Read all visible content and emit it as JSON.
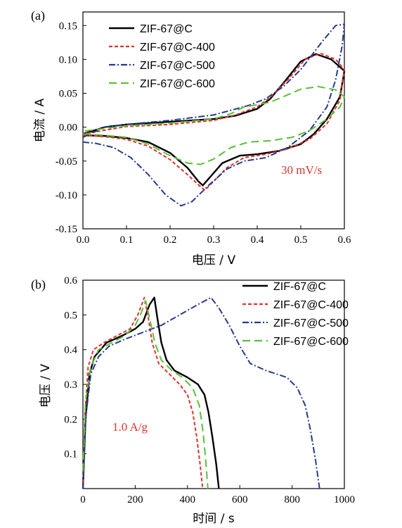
{
  "chart_data": [
    {
      "type": "line",
      "panel_label": "(a)",
      "xlabel": "电压 / V",
      "ylabel": "电流 / A",
      "xlim": [
        0.0,
        0.6
      ],
      "ylim": [
        -0.15,
        0.17
      ],
      "xticks": [
        0.0,
        0.1,
        0.2,
        0.3,
        0.4,
        0.5,
        0.6
      ],
      "yticks": [
        -0.15,
        -0.1,
        -0.05,
        0.0,
        0.05,
        0.1,
        0.15
      ],
      "x_tick_labels": [
        "0.0",
        "0.1",
        "0.2",
        "0.3",
        "0.4",
        "0.5",
        "0.6"
      ],
      "y_tick_labels": [
        "-0.15",
        "-0.10",
        "-0.05",
        "0.00",
        "0.05",
        "0.10",
        "0.15"
      ],
      "legend_position": "top-left",
      "annotation": "30 mV/s",
      "annotation_color": "#e0322b",
      "series": [
        {
          "name": "ZIF-67@C",
          "color": "#000000",
          "dash": "solid",
          "points": [
            [
              0.0,
              -0.012
            ],
            [
              0.05,
              -0.013
            ],
            [
              0.1,
              -0.016
            ],
            [
              0.15,
              -0.022
            ],
            [
              0.2,
              -0.038
            ],
            [
              0.24,
              -0.06
            ],
            [
              0.265,
              -0.08
            ],
            [
              0.275,
              -0.086
            ],
            [
              0.29,
              -0.075
            ],
            [
              0.32,
              -0.053
            ],
            [
              0.36,
              -0.042
            ],
            [
              0.4,
              -0.04
            ],
            [
              0.45,
              -0.035
            ],
            [
              0.5,
              -0.025
            ],
            [
              0.53,
              -0.01
            ],
            [
              0.56,
              0.012
            ],
            [
              0.59,
              0.045
            ],
            [
              0.6,
              0.083
            ],
            [
              0.57,
              0.1
            ],
            [
              0.535,
              0.108
            ],
            [
              0.5,
              0.097
            ],
            [
              0.46,
              0.065
            ],
            [
              0.43,
              0.042
            ],
            [
              0.4,
              0.027
            ],
            [
              0.35,
              0.017
            ],
            [
              0.3,
              0.012
            ],
            [
              0.2,
              0.008
            ],
            [
              0.1,
              0.004
            ],
            [
              0.05,
              0.0
            ],
            [
              0.0,
              -0.01
            ]
          ]
        },
        {
          "name": "ZIF-67@C-400",
          "color": "#e0322b",
          "dash": "dash",
          "points": [
            [
              0.0,
              -0.012
            ],
            [
              0.05,
              -0.014
            ],
            [
              0.1,
              -0.018
            ],
            [
              0.15,
              -0.028
            ],
            [
              0.2,
              -0.048
            ],
            [
              0.24,
              -0.07
            ],
            [
              0.27,
              -0.088
            ],
            [
              0.28,
              -0.093
            ],
            [
              0.3,
              -0.08
            ],
            [
              0.33,
              -0.06
            ],
            [
              0.37,
              -0.045
            ],
            [
              0.42,
              -0.04
            ],
            [
              0.47,
              -0.032
            ],
            [
              0.52,
              -0.018
            ],
            [
              0.56,
              0.005
            ],
            [
              0.59,
              0.04
            ],
            [
              0.6,
              0.085
            ],
            [
              0.58,
              0.1
            ],
            [
              0.545,
              0.109
            ],
            [
              0.51,
              0.1
            ],
            [
              0.47,
              0.07
            ],
            [
              0.43,
              0.044
            ],
            [
              0.4,
              0.03
            ],
            [
              0.35,
              0.018
            ],
            [
              0.3,
              0.01
            ],
            [
              0.2,
              0.004
            ],
            [
              0.1,
              0.001
            ],
            [
              0.0,
              -0.01
            ]
          ]
        },
        {
          "name": "ZIF-67@C-500",
          "color": "#283a8e",
          "dash": "dashdot",
          "points": [
            [
              0.0,
              -0.022
            ],
            [
              0.03,
              -0.024
            ],
            [
              0.07,
              -0.03
            ],
            [
              0.11,
              -0.045
            ],
            [
              0.15,
              -0.07
            ],
            [
              0.19,
              -0.1
            ],
            [
              0.225,
              -0.116
            ],
            [
              0.25,
              -0.11
            ],
            [
              0.29,
              -0.085
            ],
            [
              0.33,
              -0.062
            ],
            [
              0.37,
              -0.05
            ],
            [
              0.42,
              -0.045
            ],
            [
              0.47,
              -0.03
            ],
            [
              0.52,
              -0.005
            ],
            [
              0.56,
              0.03
            ],
            [
              0.58,
              0.07
            ],
            [
              0.595,
              0.12
            ],
            [
              0.6,
              0.152
            ],
            [
              0.58,
              0.15
            ],
            [
              0.55,
              0.127
            ],
            [
              0.5,
              0.085
            ],
            [
              0.46,
              0.06
            ],
            [
              0.42,
              0.042
            ],
            [
              0.38,
              0.032
            ],
            [
              0.34,
              0.025
            ],
            [
              0.3,
              0.018
            ],
            [
              0.2,
              0.01
            ],
            [
              0.1,
              0.004
            ],
            [
              0.05,
              0.0
            ],
            [
              0.0,
              -0.015
            ]
          ]
        },
        {
          "name": "ZIF-67@C-600",
          "color": "#5bbf3a",
          "dash": "longdash",
          "points": [
            [
              0.0,
              -0.01
            ],
            [
              0.05,
              -0.012
            ],
            [
              0.1,
              -0.015
            ],
            [
              0.15,
              -0.025
            ],
            [
              0.2,
              -0.042
            ],
            [
              0.24,
              -0.053
            ],
            [
              0.27,
              -0.055
            ],
            [
              0.3,
              -0.047
            ],
            [
              0.34,
              -0.03
            ],
            [
              0.38,
              -0.022
            ],
            [
              0.43,
              -0.02
            ],
            [
              0.48,
              -0.015
            ],
            [
              0.52,
              -0.005
            ],
            [
              0.56,
              0.012
            ],
            [
              0.59,
              0.03
            ],
            [
              0.6,
              0.045
            ],
            [
              0.58,
              0.055
            ],
            [
              0.54,
              0.06
            ],
            [
              0.5,
              0.056
            ],
            [
              0.46,
              0.045
            ],
            [
              0.43,
              0.037
            ],
            [
              0.4,
              0.033
            ],
            [
              0.37,
              0.03
            ],
            [
              0.34,
              0.02
            ],
            [
              0.3,
              0.012
            ],
            [
              0.2,
              0.006
            ],
            [
              0.1,
              0.002
            ],
            [
              0.0,
              -0.006
            ]
          ]
        }
      ]
    },
    {
      "type": "line",
      "panel_label": "(b)",
      "xlabel": "时间 / s",
      "ylabel": "电压 / V",
      "xlim": [
        0,
        1000
      ],
      "ylim": [
        0.0,
        0.6
      ],
      "xticks": [
        0,
        200,
        400,
        600,
        800,
        1000
      ],
      "yticks": [
        0.1,
        0.2,
        0.3,
        0.4,
        0.5,
        0.6
      ],
      "x_tick_labels": [
        "0",
        "200",
        "400",
        "600",
        "800",
        "1000"
      ],
      "y_tick_labels": [
        "0.1",
        "0.2",
        "0.3",
        "0.4",
        "0.5",
        "0.6"
      ],
      "legend_position": "top-right",
      "annotation": "1.0 A/g",
      "annotation_color": "#e0322b",
      "series": [
        {
          "name": "ZIF-67@C",
          "color": "#000000",
          "dash": "solid",
          "points": [
            [
              0,
              0.0
            ],
            [
              10,
              0.2
            ],
            [
              25,
              0.33
            ],
            [
              45,
              0.38
            ],
            [
              90,
              0.42
            ],
            [
              150,
              0.44
            ],
            [
              200,
              0.46
            ],
            [
              230,
              0.48
            ],
            [
              255,
              0.53
            ],
            [
              273,
              0.55
            ],
            [
              285,
              0.49
            ],
            [
              300,
              0.42
            ],
            [
              320,
              0.37
            ],
            [
              350,
              0.34
            ],
            [
              400,
              0.32
            ],
            [
              440,
              0.3
            ],
            [
              465,
              0.27
            ],
            [
              480,
              0.22
            ],
            [
              495,
              0.15
            ],
            [
              510,
              0.07
            ],
            [
              520,
              0.0
            ]
          ]
        },
        {
          "name": "ZIF-67@C-400",
          "color": "#e0322b",
          "dash": "dash",
          "points": [
            [
              0,
              0.0
            ],
            [
              8,
              0.22
            ],
            [
              20,
              0.35
            ],
            [
              40,
              0.4
            ],
            [
              80,
              0.42
            ],
            [
              130,
              0.44
            ],
            [
              180,
              0.46
            ],
            [
              210,
              0.5
            ],
            [
              235,
              0.55
            ],
            [
              248,
              0.5
            ],
            [
              265,
              0.42
            ],
            [
              290,
              0.36
            ],
            [
              330,
              0.33
            ],
            [
              370,
              0.3
            ],
            [
              400,
              0.27
            ],
            [
              420,
              0.22
            ],
            [
              435,
              0.15
            ],
            [
              448,
              0.07
            ],
            [
              458,
              0.0
            ]
          ]
        },
        {
          "name": "ZIF-67@C-500",
          "color": "#283a8e",
          "dash": "dashdot",
          "points": [
            [
              0,
              0.0
            ],
            [
              10,
              0.2
            ],
            [
              30,
              0.33
            ],
            [
              60,
              0.38
            ],
            [
              100,
              0.41
            ],
            [
              160,
              0.43
            ],
            [
              230,
              0.45
            ],
            [
              300,
              0.47
            ],
            [
              370,
              0.5
            ],
            [
              440,
              0.53
            ],
            [
              490,
              0.55
            ],
            [
              520,
              0.52
            ],
            [
              560,
              0.47
            ],
            [
              600,
              0.41
            ],
            [
              640,
              0.36
            ],
            [
              700,
              0.34
            ],
            [
              780,
              0.32
            ],
            [
              820,
              0.29
            ],
            [
              850,
              0.24
            ],
            [
              870,
              0.17
            ],
            [
              890,
              0.08
            ],
            [
              905,
              0.0
            ]
          ]
        },
        {
          "name": "ZIF-67@C-600",
          "color": "#5bbf3a",
          "dash": "longdash",
          "points": [
            [
              0,
              0.05
            ],
            [
              10,
              0.25
            ],
            [
              30,
              0.35
            ],
            [
              60,
              0.4
            ],
            [
              110,
              0.42
            ],
            [
              160,
              0.44
            ],
            [
              200,
              0.47
            ],
            [
              220,
              0.5
            ],
            [
              240,
              0.54
            ],
            [
              255,
              0.49
            ],
            [
              275,
              0.42
            ],
            [
              300,
              0.37
            ],
            [
              340,
              0.34
            ],
            [
              380,
              0.32
            ],
            [
              420,
              0.29
            ],
            [
              445,
              0.24
            ],
            [
              460,
              0.16
            ],
            [
              470,
              0.08
            ],
            [
              478,
              0.0
            ]
          ]
        }
      ]
    }
  ]
}
